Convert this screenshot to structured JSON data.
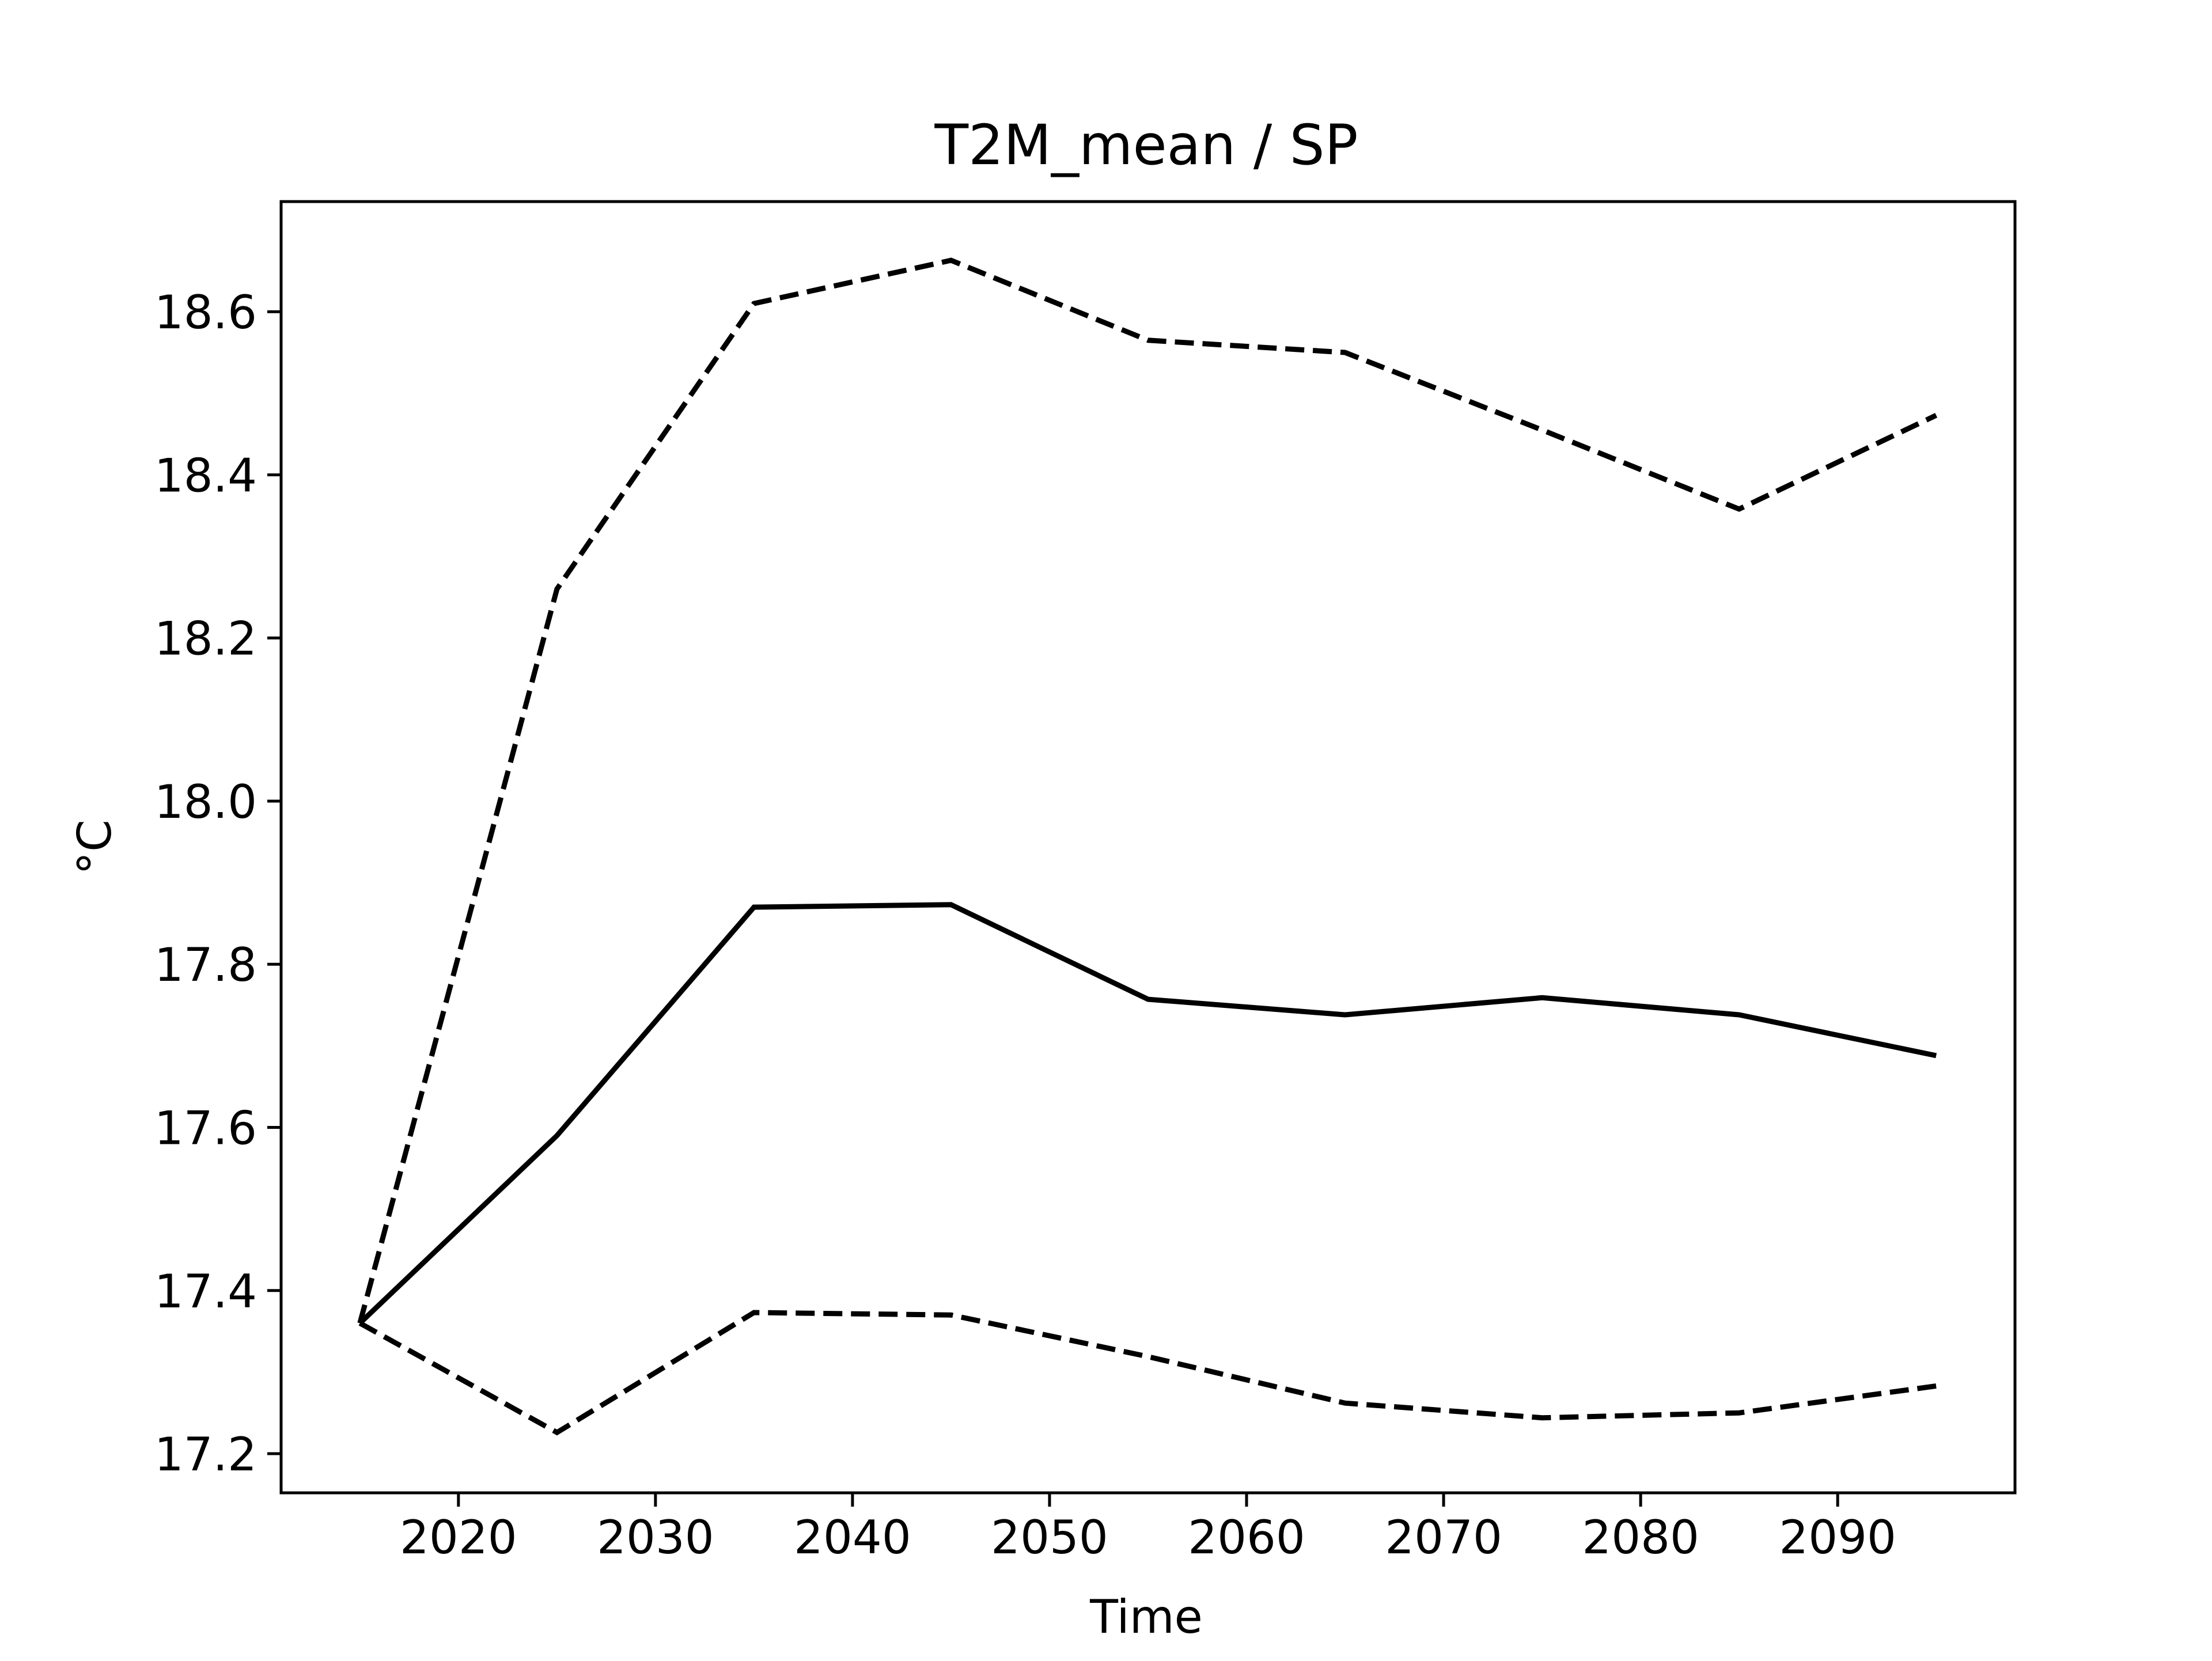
{
  "chart_data": {
    "type": "line",
    "title": "T2M_mean / SP",
    "xlabel": "Time",
    "ylabel": "°C",
    "x": [
      2015,
      2025,
      2035,
      2045,
      2055,
      2065,
      2075,
      2085,
      2095
    ],
    "series": [
      {
        "style": "solid",
        "values": [
          17.36,
          17.59,
          17.87,
          17.873,
          17.757,
          17.738,
          17.759,
          17.738,
          17.688
        ]
      },
      {
        "style": "dashed",
        "values": [
          17.36,
          18.26,
          18.61,
          18.663,
          18.565,
          18.55,
          18.455,
          18.358,
          18.473
        ]
      },
      {
        "style": "dashed",
        "values": [
          17.36,
          17.226,
          17.373,
          17.37,
          17.319,
          17.262,
          17.244,
          17.25,
          17.283
        ]
      }
    ],
    "xlim": [
      2011.0,
      2099.0
    ],
    "ylim": [
      17.152,
      18.735
    ],
    "xticks": [
      2020,
      2030,
      2040,
      2050,
      2060,
      2070,
      2080,
      2090
    ],
    "xtick_labels": [
      "2020",
      "2030",
      "2040",
      "2050",
      "2060",
      "2070",
      "2080",
      "2090"
    ],
    "yticks": [
      17.2,
      17.4,
      17.6,
      17.8,
      18.0,
      18.2,
      18.4,
      18.6
    ],
    "ytick_labels": [
      "17.2",
      "17.4",
      "17.6",
      "17.8",
      "18.0",
      "18.2",
      "18.4",
      "18.6"
    ],
    "grid": false,
    "legend": "none",
    "colors": {
      "line": "#000000",
      "axes": "#000000",
      "background": "#ffffff"
    }
  }
}
